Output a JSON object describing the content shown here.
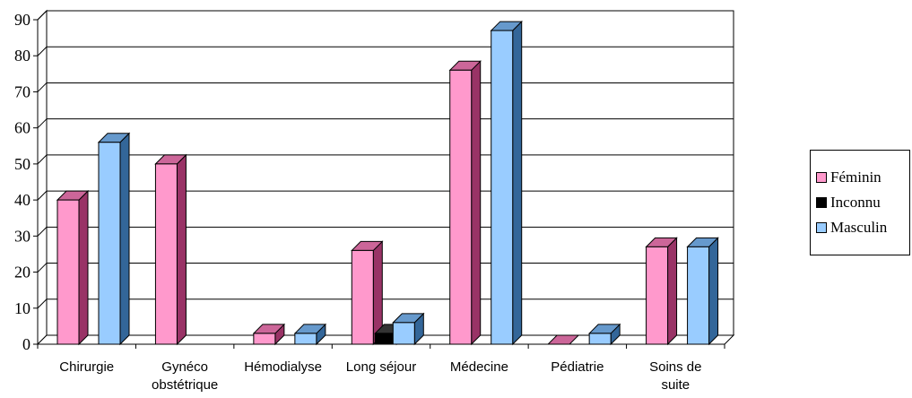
{
  "chart_data": {
    "type": "bar",
    "categories": [
      [
        "Chirurgie"
      ],
      [
        "Gynéco",
        "obstétrique"
      ],
      [
        "Hémodialyse"
      ],
      [
        "Long séjour"
      ],
      [
        "Médecine"
      ],
      [
        "Pédiatrie"
      ],
      [
        "Soins de",
        "suite"
      ]
    ],
    "series": [
      {
        "name": "Féminin",
        "values": [
          40,
          50,
          3,
          26,
          76,
          0,
          27
        ]
      },
      {
        "name": "Inconnu",
        "values": [
          0,
          0,
          0,
          3,
          0,
          0,
          0
        ]
      },
      {
        "name": "Masculin",
        "values": [
          56,
          0,
          3,
          6,
          87,
          3,
          27
        ]
      }
    ],
    "y_ticks": [
      "0",
      "10",
      "20",
      "30",
      "40",
      "50",
      "60",
      "70",
      "80",
      "90"
    ],
    "ylim": [
      0,
      90
    ],
    "grid": true,
    "legend_position": "right",
    "colors": {
      "Féminin": {
        "front": "#ff99cc",
        "side": "#993366",
        "top": "#cc6699"
      },
      "Inconnu": {
        "front": "#000000",
        "side": "#000000",
        "top": "#333333"
      },
      "Masculin": {
        "front": "#99ccff",
        "side": "#336699",
        "top": "#6699cc"
      }
    }
  }
}
